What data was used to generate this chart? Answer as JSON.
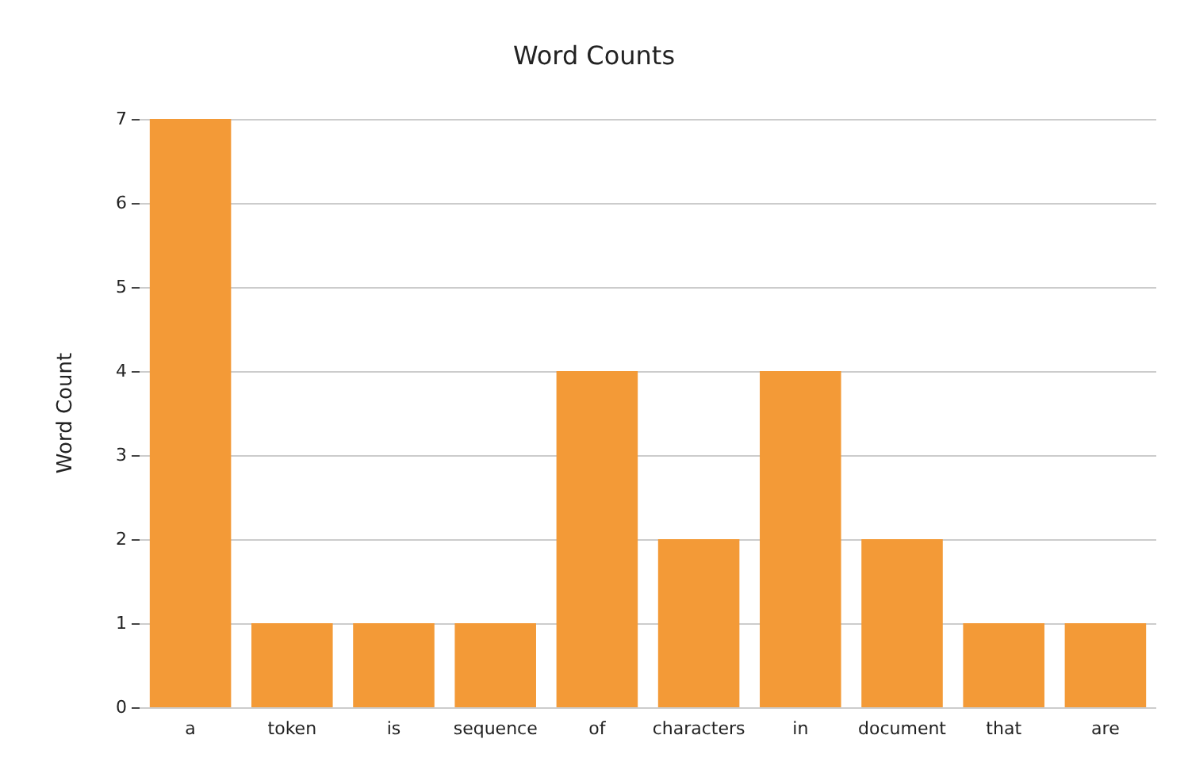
{
  "chart_data": {
    "type": "bar",
    "title": "Word Counts",
    "ylabel": "Word Count",
    "categories": [
      "a",
      "token",
      "is",
      "sequence",
      "of",
      "characters",
      "in",
      "document",
      "that",
      "are"
    ],
    "values": [
      7,
      1,
      1,
      1,
      4,
      2,
      4,
      2,
      1,
      1
    ],
    "color": "#f39a37",
    "ylim": [
      0,
      7
    ],
    "yticks": [
      0,
      1,
      2,
      3,
      4,
      5,
      6,
      7
    ],
    "grid": "y"
  }
}
